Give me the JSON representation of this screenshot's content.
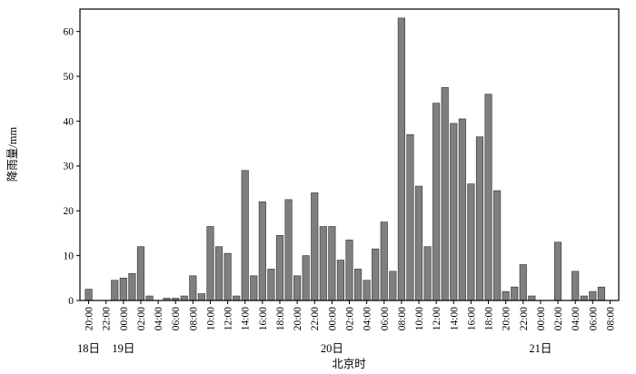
{
  "chart_data": {
    "type": "bar",
    "title": "",
    "xlabel": "北京时",
    "ylabel": "降雨量/mm",
    "ylim": [
      0,
      65
    ],
    "yticks": [
      0,
      10,
      20,
      30,
      40,
      50,
      60
    ],
    "grid": false,
    "legend": "none",
    "bar_color": "#7f7f7f",
    "bar_edge_color": "#3f3f3f",
    "hours_per_tick": 2,
    "x_tick_labels": [
      "20:00",
      "22:00",
      "00:00",
      "02:00",
      "04:00",
      "06:00",
      "08:00",
      "10:00",
      "12:00",
      "14:00",
      "16:00",
      "18:00",
      "20:00",
      "22:00",
      "00:00",
      "02:00",
      "04:00",
      "06:00",
      "08:00",
      "10:00",
      "12:00",
      "14:00",
      "16:00",
      "18:00",
      "20:00",
      "22:00",
      "00:00",
      "02:00",
      "04:00",
      "06:00",
      "08:00"
    ],
    "day_markers": [
      {
        "label": "18日",
        "tick_index": 0
      },
      {
        "label": "19日",
        "tick_index": 2
      },
      {
        "label": "20日",
        "tick_index": 14
      },
      {
        "label": "21日",
        "tick_index": 26
      }
    ],
    "values_hourly": [
      2.5,
      0,
      0,
      4.5,
      5,
      6,
      12,
      1,
      0,
      0.5,
      0.5,
      1,
      5.5,
      1.5,
      16.5,
      12,
      10.5,
      1,
      29,
      5.5,
      22,
      7,
      14.5,
      22.5,
      5.5,
      10,
      24,
      16.5,
      16.5,
      9,
      13.5,
      7,
      4.5,
      11.5,
      17.5,
      6.5,
      63,
      37,
      25.5,
      12,
      44,
      47.5,
      39.5,
      40.5,
      26,
      36.5,
      46,
      24.5,
      2,
      3,
      8,
      1,
      0,
      0,
      13,
      0,
      6.5,
      1,
      2,
      3,
      0
    ]
  }
}
